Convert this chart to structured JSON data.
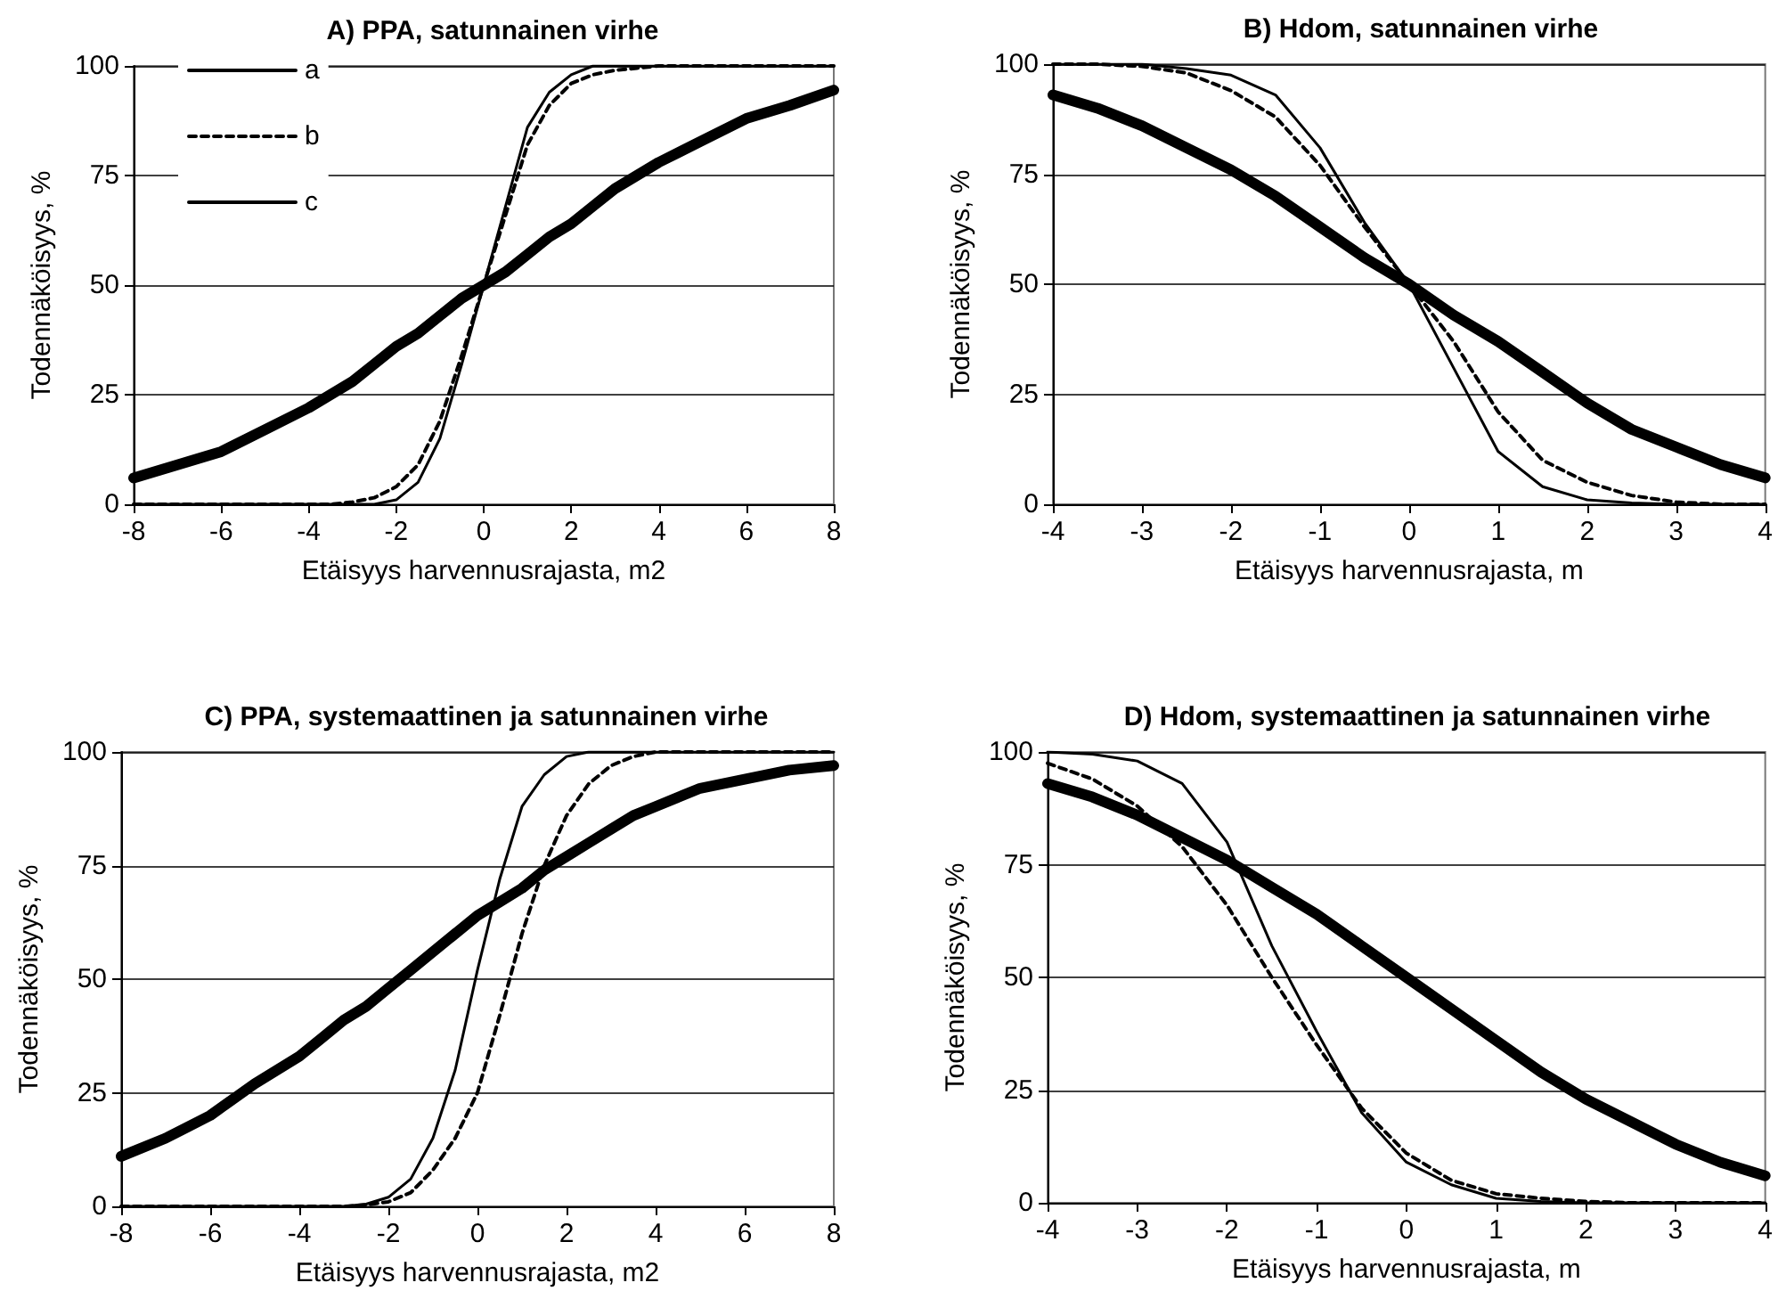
{
  "chart_data": [
    {
      "type": "line",
      "title": "A) PPA, satunnainen virhe",
      "xlabel": "Etäisyys harvennusrajasta, m2",
      "ylabel": "Todennäköisyys, %",
      "x": [
        -8,
        -7,
        -6,
        -5,
        -4,
        -3.5,
        -3,
        -2.5,
        -2,
        -1.5,
        -1,
        -0.5,
        0,
        0.5,
        1,
        1.5,
        2,
        2.5,
        3,
        3.5,
        4,
        5,
        6,
        7,
        8
      ],
      "series": [
        {
          "name": "a",
          "color": "#000000",
          "line_style": "solid",
          "values": [
            0,
            0,
            0,
            0,
            0,
            0,
            0,
            0,
            1,
            5,
            15,
            32,
            50,
            68,
            86,
            94,
            98,
            100,
            100,
            100,
            100,
            100,
            100,
            100,
            100
          ]
        },
        {
          "name": "b",
          "color": "#000000",
          "line_style": "dashed",
          "values": [
            0,
            0,
            0,
            0,
            0,
            0,
            0.5,
            1.5,
            4,
            9,
            19,
            34,
            50,
            66,
            82,
            91,
            96,
            98,
            99,
            99.5,
            100,
            100,
            100,
            100,
            100
          ]
        },
        {
          "name": "c",
          "color": "#000000",
          "line_style": "solid",
          "values": [
            6,
            9,
            12,
            17,
            22,
            25,
            28,
            32,
            36,
            39,
            43,
            47,
            50,
            53,
            57,
            61,
            64,
            68,
            72,
            75,
            78,
            83,
            88,
            91,
            94.5
          ]
        }
      ],
      "xlim": [
        -8,
        8
      ],
      "xticks": [
        -8,
        -6,
        -4,
        -2,
        0,
        2,
        4,
        6,
        8
      ],
      "ylim": [
        0,
        100
      ],
      "yticks": [
        0,
        25,
        50,
        75,
        100
      ],
      "grid": "y",
      "legend": "top left",
      "marker": "none"
    },
    {
      "type": "line",
      "title": "B) Hdom, satunnainen virhe",
      "xlabel": "Etäisyys harvennusrajasta, m",
      "ylabel": "Todennäköisyys, %",
      "x": [
        -4,
        -3.5,
        -3,
        -2.5,
        -2,
        -1.5,
        -1,
        -0.5,
        0,
        0.5,
        1,
        1.5,
        2,
        2.5,
        3,
        3.5,
        4
      ],
      "series": [
        {
          "color": "#000000",
          "line_style": "solid",
          "values": [
            100,
            100,
            100,
            99,
            97.5,
            93,
            81,
            64,
            50,
            31,
            12,
            4,
            1,
            0.3,
            0,
            0,
            0
          ]
        },
        {
          "color": "#000000",
          "line_style": "dashed",
          "values": [
            100,
            100,
            99.5,
            98,
            94,
            88,
            77,
            63,
            50,
            37,
            21,
            10,
            5,
            2,
            0.5,
            0,
            0
          ]
        },
        {
          "color": "#000000",
          "line_style": "solid",
          "values": [
            93,
            90,
            86,
            81,
            76,
            70,
            63,
            56,
            50,
            43,
            37,
            30,
            23,
            17,
            13,
            9,
            6
          ]
        }
      ],
      "xlim": [
        -4,
        4
      ],
      "xticks": [
        -4,
        -3,
        -2,
        -1,
        0,
        1,
        2,
        3,
        4
      ],
      "ylim": [
        0,
        100
      ],
      "yticks": [
        0,
        25,
        50,
        75,
        100
      ],
      "grid": "y",
      "legend": false,
      "marker": "none"
    },
    {
      "type": "line",
      "title": "C) PPA, systemaattinen ja satunnainen virhe",
      "xlabel": "Etäisyys harvennusrajasta, m2",
      "ylabel": "Todennäköisyys, %",
      "x": [
        -8,
        -7,
        -6,
        -5,
        -4,
        -3.5,
        -3,
        -2.5,
        -2,
        -1.5,
        -1,
        -0.5,
        0,
        0.5,
        1,
        1.5,
        2,
        2.5,
        3,
        3.5,
        4,
        5,
        6,
        7,
        8
      ],
      "series": [
        {
          "color": "#000000",
          "line_style": "solid",
          "values": [
            0,
            0,
            0,
            0,
            0,
            0,
            0,
            0.5,
            2,
            6,
            15,
            30,
            52,
            72,
            88,
            95,
            99,
            100,
            100,
            100,
            100,
            100,
            100,
            100,
            100
          ]
        },
        {
          "color": "#000000",
          "line_style": "dashed",
          "values": [
            0,
            0,
            0,
            0,
            0,
            0,
            0,
            0.3,
            1,
            3,
            8,
            15,
            25,
            42,
            60,
            75,
            86,
            93,
            97,
            99,
            100,
            100,
            100,
            100,
            100
          ]
        },
        {
          "color": "#000000",
          "line_style": "solid",
          "values": [
            11,
            15,
            20,
            27,
            33,
            37,
            41,
            44,
            48,
            52,
            56,
            60,
            64,
            67,
            70,
            74,
            77,
            80,
            83,
            86,
            88,
            92,
            94,
            96,
            97
          ]
        }
      ],
      "xlim": [
        -8,
        8
      ],
      "xticks": [
        -8,
        -6,
        -4,
        -2,
        0,
        2,
        4,
        6,
        8
      ],
      "ylim": [
        0,
        100
      ],
      "yticks": [
        0,
        25,
        50,
        75,
        100
      ],
      "grid": "y",
      "legend": false,
      "marker": "none"
    },
    {
      "type": "line",
      "title": "D) Hdom, systemaattinen ja satunnainen virhe",
      "xlabel": "Etäisyys harvennusrajasta, m",
      "ylabel": "Todennäköisyys, %",
      "x": [
        -4,
        -3.5,
        -3,
        -2.5,
        -2,
        -1.5,
        -1,
        -0.5,
        0,
        0.5,
        1,
        1.5,
        2,
        2.5,
        3,
        3.5,
        4
      ],
      "series": [
        {
          "color": "#000000",
          "line_style": "solid",
          "values": [
            100,
            99.5,
            98,
            93,
            80,
            57,
            38,
            20,
            9,
            4,
            1,
            0.3,
            0,
            0,
            0,
            0,
            0
          ]
        },
        {
          "color": "#000000",
          "line_style": "dashed",
          "values": [
            97.5,
            94,
            88,
            79,
            66,
            50,
            35,
            21,
            11,
            5,
            2,
            1,
            0.3,
            0,
            0,
            0,
            0
          ]
        },
        {
          "color": "#000000",
          "line_style": "solid",
          "values": [
            93,
            90,
            86,
            81,
            76,
            70,
            64,
            57,
            50,
            43,
            36,
            29,
            23,
            18,
            13,
            9,
            6
          ]
        }
      ],
      "xlim": [
        -4,
        4
      ],
      "xticks": [
        -4,
        -3,
        -2,
        -1,
        0,
        1,
        2,
        3,
        4
      ],
      "ylim": [
        0,
        100
      ],
      "yticks": [
        0,
        25,
        50,
        75,
        100
      ],
      "grid": "y",
      "legend": false,
      "marker": "none"
    }
  ]
}
